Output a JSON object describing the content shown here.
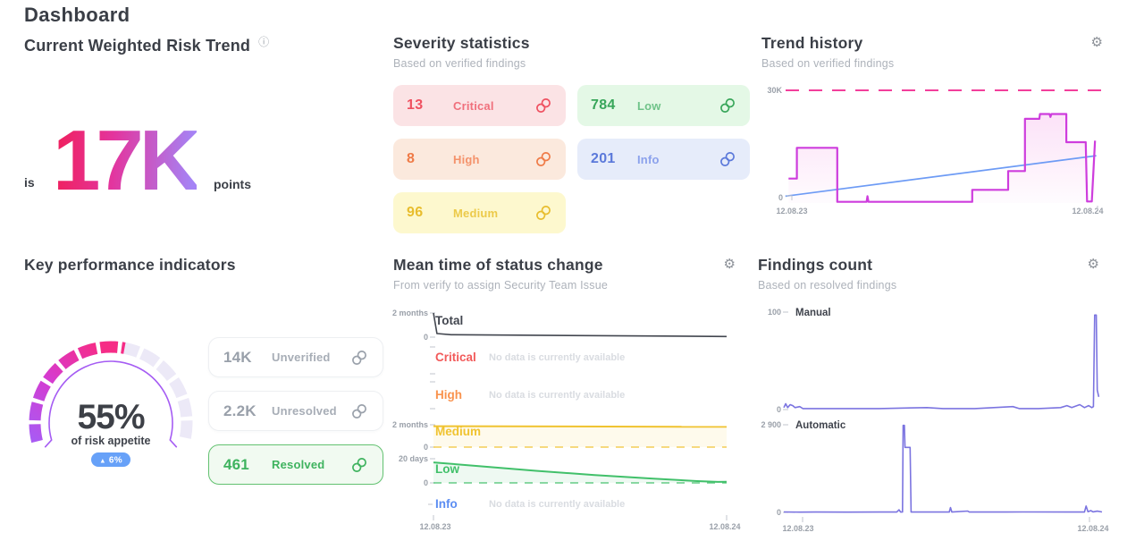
{
  "page": {
    "title": "Dashboard"
  },
  "icons": {
    "gear": "⚙",
    "info": "ⓘ",
    "arrow_up": "▲"
  },
  "risk_trend": {
    "title": "Current Weighted Risk Trend",
    "prefix": "is",
    "value": "17K",
    "suffix": "points",
    "value_gradient": [
      "#ef2160",
      "#e3359e",
      "#a583f5"
    ]
  },
  "severity": {
    "title": "Severity statistics",
    "subtitle": "Based on verified findings",
    "cards": [
      {
        "count": "13",
        "label": "Critical",
        "count_color": "#ef5060",
        "label_color": "#f0707c",
        "bg": "#fbe3e5"
      },
      {
        "count": "784",
        "label": "Low",
        "count_color": "#38a65a",
        "label_color": "#6fc389",
        "bg": "#e4f8e6"
      },
      {
        "count": "8",
        "label": "High",
        "count_color": "#ef7a46",
        "label_color": "#f4926b",
        "bg": "#fbe9dd"
      },
      {
        "count": "201",
        "label": "Info",
        "count_color": "#5b79da",
        "label_color": "#8ba1ec",
        "bg": "#e6ecfa"
      },
      {
        "count": "96",
        "label": "Medium",
        "count_color": "#e8bd2d",
        "label_color": "#ecca4a",
        "bg": "#fdf8ce"
      }
    ]
  },
  "trend_history": {
    "title": "Trend history",
    "subtitle": "Based on verified findings"
  },
  "kpi": {
    "title": "Key performance indicators",
    "cards": [
      {
        "value": "14K",
        "label": "Unverified",
        "state": "default"
      },
      {
        "value": "2.2K",
        "label": "Unresolved",
        "state": "default"
      },
      {
        "value": "461",
        "label": "Resolved",
        "state": "resolved"
      }
    ]
  },
  "mean_time": {
    "title": "Mean time of status change",
    "subtitle": "From verify to assign Security Team Issue"
  },
  "findings": {
    "title": "Findings count",
    "subtitle": "Based on resolved findings"
  },
  "chart_data": [
    {
      "id": "trend-history",
      "type": "line",
      "title": "Trend history",
      "x_axis": {
        "left_label": "12.08.23",
        "right_label": "12.08.24"
      },
      "y_axis": {
        "top_label": "30K",
        "zero_label": "0",
        "unit": "K",
        "ylim": [
          0,
          30
        ]
      },
      "threshold": {
        "value": 30,
        "label": "30K",
        "style": "dashed",
        "color": "#f23f9b"
      },
      "series": [
        {
          "name": "weighted risk",
          "color": "#ce3ddd",
          "fill": true,
          "points": [
            [
              0.015,
              6.5
            ],
            [
              0.041,
              6.5
            ],
            [
              0.041,
              14.7
            ],
            [
              0.168,
              14.7
            ],
            [
              0.168,
              0.3
            ],
            [
              0.26,
              0.3
            ],
            [
              0.263,
              1.8
            ],
            [
              0.266,
              0.3
            ],
            [
              0.592,
              0.3
            ],
            [
              0.592,
              3.5
            ],
            [
              0.705,
              3.5
            ],
            [
              0.705,
              8.5
            ],
            [
              0.758,
              8.5
            ],
            [
              0.758,
              22.4
            ],
            [
              0.803,
              22.4
            ],
            [
              0.805,
              23.7
            ],
            [
              0.835,
              23.7
            ],
            [
              0.838,
              22.9
            ],
            [
              0.841,
              23.7
            ],
            [
              0.888,
              23.7
            ],
            [
              0.888,
              16.2
            ],
            [
              0.949,
              16.2
            ],
            [
              0.953,
              0.4
            ],
            [
              0.968,
              0.4
            ],
            [
              0.978,
              16.6
            ]
          ]
        },
        {
          "name": "trend line",
          "color": "#6d9bf5",
          "points": [
            [
              0.005,
              1.8
            ],
            [
              0.982,
              12.6
            ]
          ]
        }
      ]
    },
    {
      "id": "mean-time-of-status-change",
      "type": "line",
      "title": "Mean time of status change",
      "x_axis": {
        "left_label": "12.08.23",
        "right_label": "12.08.24"
      },
      "rows": [
        {
          "label": "Total",
          "color": "#42464f",
          "y_top_label": "2 months",
          "y_zero_label": "0",
          "ymax": 2,
          "unit": "months",
          "points": [
            [
              0,
              2
            ],
            [
              0.012,
              0.3
            ],
            [
              0.06,
              0.2
            ],
            [
              1,
              0.05
            ]
          ]
        },
        {
          "label": "Critical",
          "color": "#f25a5a",
          "message": "No data is currently available"
        },
        {
          "label": "High",
          "color": "#f9934e",
          "message": "No data is currently available"
        },
        {
          "label": "Medium",
          "color": "#f0c330",
          "y_top_label": "2 months",
          "y_zero_label": "0",
          "ymax": 2,
          "unit": "months",
          "zero_line": "dashed",
          "fill": "rgba(240,195,48,0.09)",
          "points": [
            [
              0,
              1.87
            ],
            [
              1,
              1.82
            ]
          ]
        },
        {
          "label": "Low",
          "color": "#41c06a",
          "y_top_label": "20 days",
          "y_zero_label": "0",
          "ymax": 20,
          "unit": "days",
          "zero_line": "dashed",
          "fill": "rgba(65,192,106,0.09)",
          "points": [
            [
              0,
              17
            ],
            [
              0.15,
              14
            ],
            [
              0.35,
              10
            ],
            [
              0.55,
              6.5
            ],
            [
              0.75,
              3.5
            ],
            [
              0.9,
              1.5
            ],
            [
              0.97,
              0.8
            ],
            [
              1,
              1
            ]
          ]
        },
        {
          "label": "Info",
          "color": "#5b8df2",
          "message": "No data is currently available"
        }
      ]
    },
    {
      "id": "findings-count",
      "type": "line",
      "title": "Findings count",
      "x_axis": {
        "left_label": "12.08.23",
        "right_label": "12.08.24"
      },
      "rows": [
        {
          "label": "Manual",
          "color": "#7b74e0",
          "y_top_label": "100",
          "y_zero_label": "0",
          "ymax": 100,
          "points": [
            [
              0,
              2
            ],
            [
              0.006,
              6
            ],
            [
              0.012,
              2
            ],
            [
              0.02,
              5
            ],
            [
              0.028,
              4
            ],
            [
              0.035,
              2
            ],
            [
              0.05,
              3
            ],
            [
              0.06,
              1
            ],
            [
              0.15,
              1
            ],
            [
              0.3,
              1
            ],
            [
              0.45,
              2
            ],
            [
              0.5,
              1
            ],
            [
              0.6,
              1
            ],
            [
              0.72,
              3
            ],
            [
              0.74,
              1
            ],
            [
              0.8,
              1
            ],
            [
              0.87,
              2
            ],
            [
              0.89,
              4
            ],
            [
              0.905,
              2
            ],
            [
              0.93,
              5
            ],
            [
              0.945,
              2
            ],
            [
              0.958,
              4
            ],
            [
              0.968,
              2
            ],
            [
              0.973,
              3
            ],
            [
              0.977,
              97
            ],
            [
              0.982,
              97
            ],
            [
              0.985,
              20
            ],
            [
              0.99,
              13
            ]
          ]
        },
        {
          "label": "Automatic",
          "color": "#7b74e0",
          "y_top_label": "2 900",
          "y_zero_label": "0",
          "ymax": 2900,
          "points": [
            [
              0,
              15
            ],
            [
              0.05,
              10
            ],
            [
              0.1,
              12
            ],
            [
              0.2,
              10
            ],
            [
              0.3,
              12
            ],
            [
              0.355,
              12
            ],
            [
              0.362,
              85
            ],
            [
              0.367,
              12
            ],
            [
              0.373,
              12
            ],
            [
              0.375,
              2880
            ],
            [
              0.379,
              2880
            ],
            [
              0.381,
              2150
            ],
            [
              0.397,
              2150
            ],
            [
              0.4,
              12
            ],
            [
              0.45,
              12
            ],
            [
              0.52,
              12
            ],
            [
              0.524,
              160
            ],
            [
              0.528,
              12
            ],
            [
              0.578,
              45
            ],
            [
              0.583,
              12
            ],
            [
              0.7,
              12
            ],
            [
              0.75,
              15
            ],
            [
              0.9,
              12
            ],
            [
              0.945,
              12
            ],
            [
              0.95,
              210
            ],
            [
              0.956,
              25
            ],
            [
              0.965,
              60
            ],
            [
              0.972,
              18
            ],
            [
              0.985,
              40
            ],
            [
              1,
              15
            ]
          ]
        }
      ]
    },
    {
      "id": "risk-appetite-gauge",
      "type": "gauge",
      "percent": 55,
      "label": "55%",
      "caption": "of risk appetite",
      "delta_badge": {
        "direction": "up",
        "value": "6%",
        "color": "#67a1f8"
      },
      "segments": 13,
      "sweep_deg": 208,
      "track_color": "#ece9f7",
      "fill_gradient": [
        "#a95af3",
        "#d63bd0",
        "#f62c86"
      ],
      "inner_arc_color": "#a55cf3"
    }
  ]
}
